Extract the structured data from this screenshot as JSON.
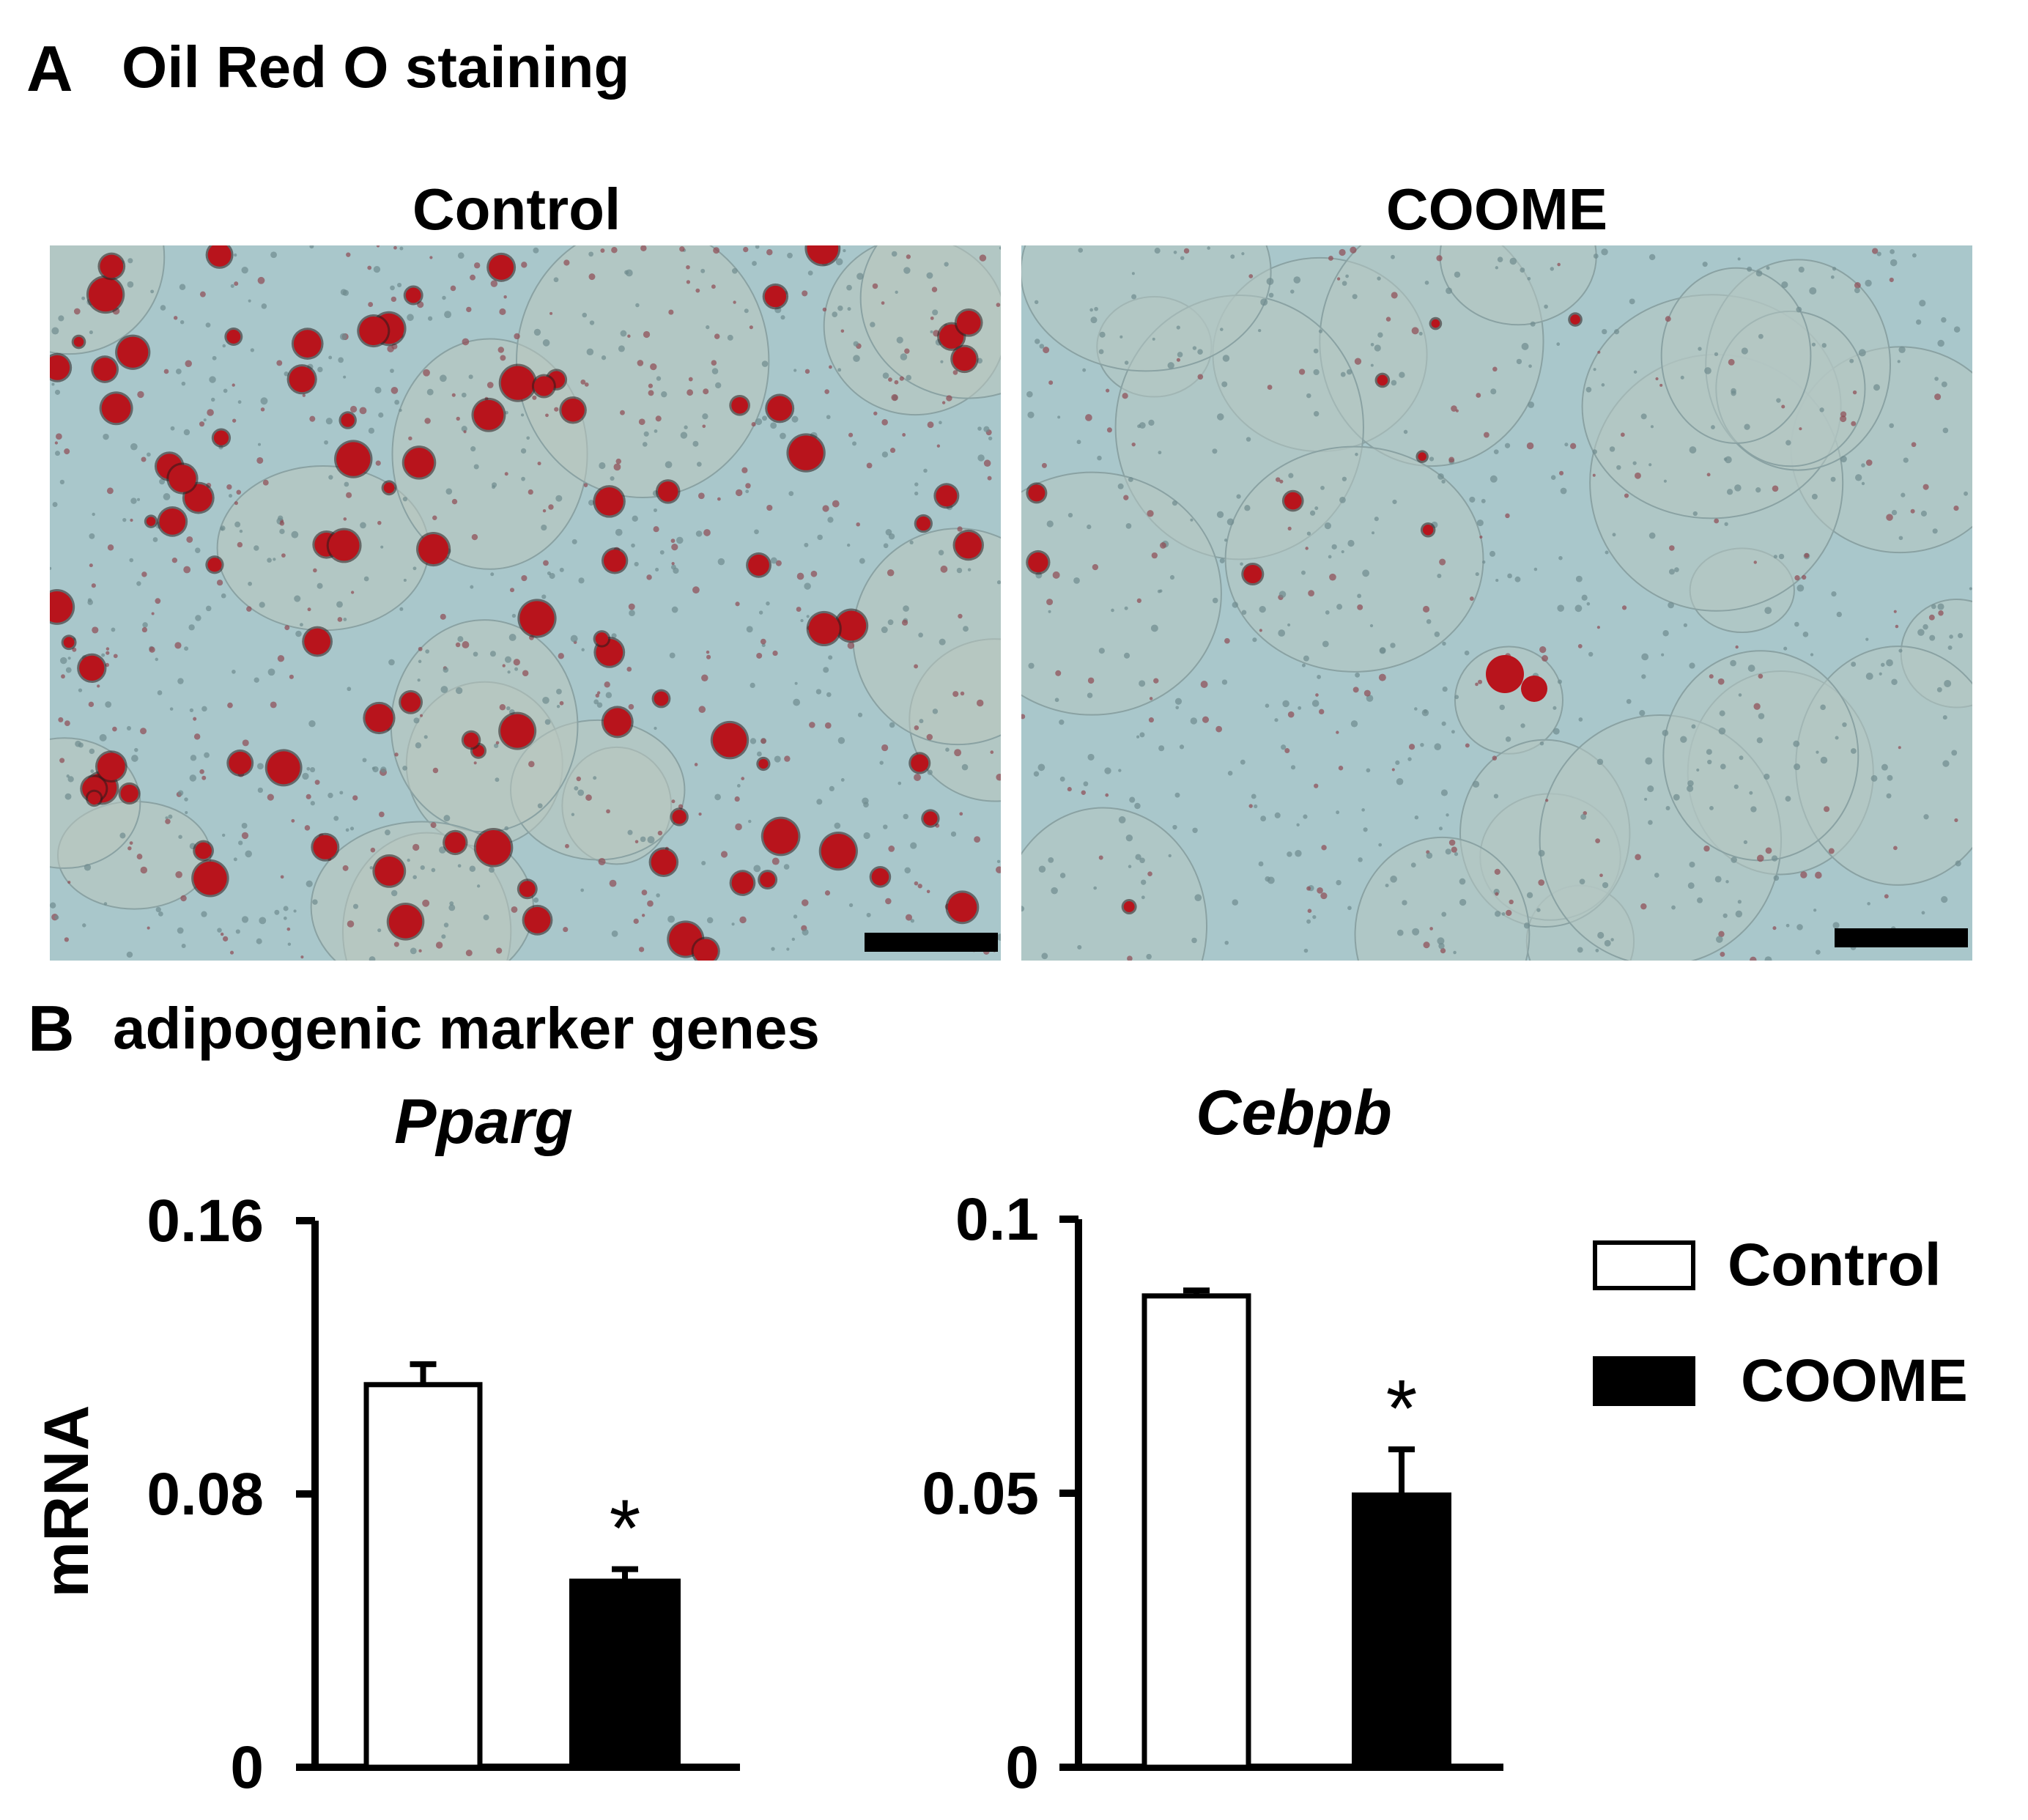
{
  "panel_a": {
    "letter": "A",
    "title": "Oil Red O staining",
    "images": [
      {
        "label": "Control"
      },
      {
        "label": "COOME"
      }
    ]
  },
  "panel_b": {
    "letter": "B",
    "title": "adipogenic marker genes"
  },
  "legend": {
    "items": [
      {
        "label": "Control",
        "fill": "#ffffff"
      },
      {
        "label": "COOME",
        "fill": "#000000"
      }
    ]
  },
  "colors": {
    "micro_background": "#a9c7cb",
    "lipid_red": "#b8141c",
    "bar_black": "#000000"
  },
  "chart_data": [
    {
      "type": "bar",
      "title": "Pparg",
      "ylabel": "mRNA",
      "xlabel": "",
      "categories": [
        "Control",
        "COOME"
      ],
      "series": [
        {
          "name": "mRNA",
          "values": [
            0.112,
            0.055
          ]
        }
      ],
      "errors": [
        0.006,
        0.003
      ],
      "significance": [
        "",
        "*"
      ],
      "ylim": [
        0,
        0.16
      ],
      "yticks": [
        "0",
        "0.08",
        "0.16"
      ],
      "grid": false
    },
    {
      "type": "bar",
      "title": "Cebpb",
      "ylabel": "",
      "xlabel": "",
      "categories": [
        "Control",
        "COOME"
      ],
      "series": [
        {
          "name": "mRNA",
          "values": [
            0.086,
            0.05
          ]
        }
      ],
      "errors": [
        0.001,
        0.008
      ],
      "significance": [
        "",
        "*"
      ],
      "ylim": [
        0,
        0.1
      ],
      "yticks": [
        "0",
        "0.05",
        "0.1"
      ],
      "grid": false
    }
  ]
}
